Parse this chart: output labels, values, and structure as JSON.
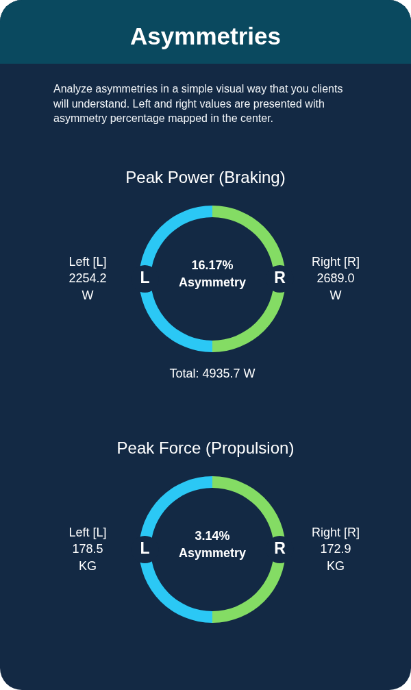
{
  "chart_data": [
    {
      "type": "other",
      "title": "Asymmetries",
      "subtitle": "Analyze asymmetries in a simple visual way that you clients will understand. Left and right values are presented with asymmetry percentage mapped in the center."
    },
    {
      "type": "donut",
      "title": "Peak Power (Braking)",
      "categories": [
        "L",
        "R"
      ],
      "values": [
        50,
        50
      ],
      "colors": [
        "#2bc8f5",
        "#84dc64"
      ],
      "annotations": [
        "Left [L]\n2254.2\nW",
        "Right [R]\n2689.0\nW",
        "16.17%\nAsymmetry",
        "Total: 4935.7 W"
      ]
    },
    {
      "type": "donut",
      "title": "Peak Force (Propulsion)",
      "categories": [
        "L",
        "R"
      ],
      "values": [
        50,
        50
      ],
      "colors": [
        "#2bc8f5",
        "#84dc64"
      ],
      "annotations": [
        "Left [L]\n178.5\nKG",
        "Right [R]\n172.9\nKG",
        "3.14%\nAsymmetry"
      ]
    }
  ]
}
